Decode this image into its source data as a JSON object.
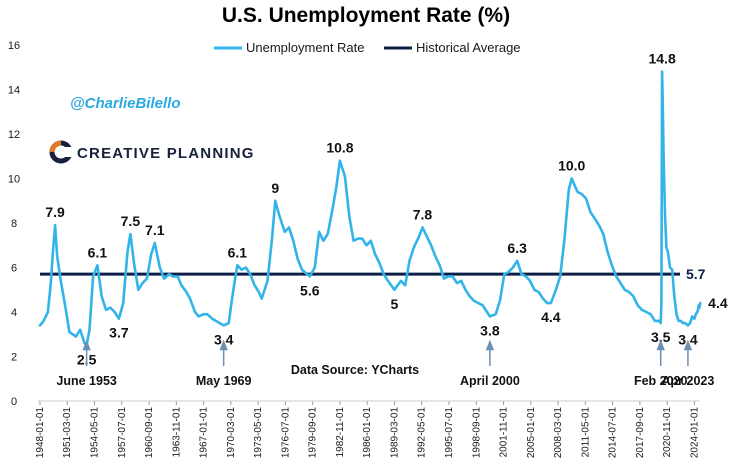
{
  "handle": "@CharlieBilello",
  "brand": {
    "name": "CREATIVE PLANNING",
    "mark": "C",
    "trademark": "®"
  },
  "source": "Data Source: YCharts",
  "colors": {
    "series": "#33b4e8",
    "average": "#0e1f47",
    "arrow": "#6b8fb5",
    "brand_mark": "#e0772a"
  },
  "chart_data": {
    "type": "line",
    "title": "U.S. Unemployment Rate (%)",
    "xlabel": "",
    "ylabel": "",
    "ylim": [
      0,
      16
    ],
    "yticks": [
      "0",
      "2",
      "4",
      "6",
      "8",
      "10",
      "12",
      "14",
      "16"
    ],
    "xlim": [
      "1948-01-01",
      "2024-06-01"
    ],
    "xticks": [
      "1948-01-01",
      "1951-03-01",
      "1954-05-01",
      "1957-07-01",
      "1960-09-01",
      "1963-11-01",
      "1967-01-01",
      "1970-03-01",
      "1973-05-01",
      "1976-07-01",
      "1979-09-01",
      "1982-11-01",
      "1986-01-01",
      "1989-03-01",
      "1992-05-01",
      "1995-07-01",
      "1998-09-01",
      "2001-11-01",
      "2005-01-01",
      "2008-03-01",
      "2011-05-01",
      "2014-07-01",
      "2017-09-01",
      "2020-11-01",
      "2024-01-01"
    ],
    "grid": false,
    "legend": "top-center",
    "series": [
      {
        "name": "Unemployment Rate",
        "points": [
          [
            "1948-01-01",
            3.4
          ],
          [
            "1948-06-01",
            3.6
          ],
          [
            "1948-12-01",
            4.0
          ],
          [
            "1949-04-01",
            5.3
          ],
          [
            "1949-07-01",
            6.7
          ],
          [
            "1949-10-01",
            7.9
          ],
          [
            "1950-01-01",
            6.5
          ],
          [
            "1950-06-01",
            5.4
          ],
          [
            "1950-12-01",
            4.3
          ],
          [
            "1951-06-01",
            3.1
          ],
          [
            "1952-03-01",
            2.9
          ],
          [
            "1952-09-01",
            3.2
          ],
          [
            "1953-03-01",
            2.6
          ],
          [
            "1953-06-01",
            2.5
          ],
          [
            "1953-10-01",
            3.2
          ],
          [
            "1954-03-01",
            5.6
          ],
          [
            "1954-09-01",
            6.1
          ],
          [
            "1955-03-01",
            4.7
          ],
          [
            "1955-09-01",
            4.1
          ],
          [
            "1956-03-01",
            4.2
          ],
          [
            "1956-09-01",
            4.0
          ],
          [
            "1957-03-01",
            3.7
          ],
          [
            "1957-09-01",
            4.4
          ],
          [
            "1958-03-01",
            6.7
          ],
          [
            "1958-07-01",
            7.5
          ],
          [
            "1958-12-01",
            6.2
          ],
          [
            "1959-06-01",
            5.0
          ],
          [
            "1959-12-01",
            5.3
          ],
          [
            "1960-06-01",
            5.5
          ],
          [
            "1960-12-01",
            6.6
          ],
          [
            "1961-05-01",
            7.1
          ],
          [
            "1961-12-01",
            6.0
          ],
          [
            "1962-06-01",
            5.5
          ],
          [
            "1963-01-01",
            5.7
          ],
          [
            "1963-06-01",
            5.6
          ],
          [
            "1964-01-01",
            5.6
          ],
          [
            "1964-06-01",
            5.2
          ],
          [
            "1965-01-01",
            4.9
          ],
          [
            "1965-06-01",
            4.6
          ],
          [
            "1966-01-01",
            4.0
          ],
          [
            "1966-06-01",
            3.8
          ],
          [
            "1967-01-01",
            3.9
          ],
          [
            "1967-06-01",
            3.9
          ],
          [
            "1968-01-01",
            3.7
          ],
          [
            "1968-06-01",
            3.6
          ],
          [
            "1969-05-01",
            3.4
          ],
          [
            "1969-12-01",
            3.5
          ],
          [
            "1970-06-01",
            4.9
          ],
          [
            "1970-12-01",
            6.1
          ],
          [
            "1971-06-01",
            5.9
          ],
          [
            "1971-12-01",
            6.0
          ],
          [
            "1972-06-01",
            5.7
          ],
          [
            "1972-12-01",
            5.2
          ],
          [
            "1973-06-01",
            4.9
          ],
          [
            "1973-10-01",
            4.6
          ],
          [
            "1974-06-01",
            5.4
          ],
          [
            "1974-12-01",
            7.2
          ],
          [
            "1975-05-01",
            9.0
          ],
          [
            "1975-10-01",
            8.4
          ],
          [
            "1976-06-01",
            7.6
          ],
          [
            "1976-12-01",
            7.8
          ],
          [
            "1977-06-01",
            7.2
          ],
          [
            "1977-12-01",
            6.4
          ],
          [
            "1978-06-01",
            5.9
          ],
          [
            "1979-05-01",
            5.6
          ],
          [
            "1979-12-01",
            6.0
          ],
          [
            "1980-06-01",
            7.6
          ],
          [
            "1980-12-01",
            7.2
          ],
          [
            "1981-06-01",
            7.5
          ],
          [
            "1981-12-01",
            8.5
          ],
          [
            "1982-06-01",
            9.6
          ],
          [
            "1982-11-01",
            10.8
          ],
          [
            "1983-06-01",
            10.1
          ],
          [
            "1983-12-01",
            8.3
          ],
          [
            "1984-06-01",
            7.2
          ],
          [
            "1984-12-01",
            7.3
          ],
          [
            "1985-06-01",
            7.3
          ],
          [
            "1985-12-01",
            7.0
          ],
          [
            "1986-06-01",
            7.2
          ],
          [
            "1986-12-01",
            6.6
          ],
          [
            "1987-06-01",
            6.2
          ],
          [
            "1987-12-01",
            5.7
          ],
          [
            "1988-06-01",
            5.4
          ],
          [
            "1989-03-01",
            5.0
          ],
          [
            "1989-12-01",
            5.4
          ],
          [
            "1990-06-01",
            5.2
          ],
          [
            "1990-12-01",
            6.3
          ],
          [
            "1991-06-01",
            6.9
          ],
          [
            "1991-12-01",
            7.3
          ],
          [
            "1992-06-01",
            7.8
          ],
          [
            "1992-12-01",
            7.4
          ],
          [
            "1993-06-01",
            7.0
          ],
          [
            "1993-12-01",
            6.5
          ],
          [
            "1994-06-01",
            6.1
          ],
          [
            "1994-12-01",
            5.5
          ],
          [
            "1995-06-01",
            5.6
          ],
          [
            "1995-12-01",
            5.6
          ],
          [
            "1996-06-01",
            5.3
          ],
          [
            "1996-12-01",
            5.4
          ],
          [
            "1997-06-01",
            5.0
          ],
          [
            "1997-12-01",
            4.7
          ],
          [
            "1998-06-01",
            4.5
          ],
          [
            "1998-12-01",
            4.4
          ],
          [
            "1999-06-01",
            4.3
          ],
          [
            "1999-12-01",
            4.0
          ],
          [
            "2000-04-01",
            3.8
          ],
          [
            "2000-12-01",
            3.9
          ],
          [
            "2001-06-01",
            4.5
          ],
          [
            "2001-12-01",
            5.7
          ],
          [
            "2002-06-01",
            5.8
          ],
          [
            "2002-12-01",
            6.0
          ],
          [
            "2003-06-01",
            6.3
          ],
          [
            "2003-12-01",
            5.7
          ],
          [
            "2004-06-01",
            5.6
          ],
          [
            "2004-12-01",
            5.4
          ],
          [
            "2005-06-01",
            5.0
          ],
          [
            "2005-12-01",
            4.9
          ],
          [
            "2006-06-01",
            4.6
          ],
          [
            "2006-12-01",
            4.4
          ],
          [
            "2007-05-01",
            4.4
          ],
          [
            "2007-12-01",
            5.0
          ],
          [
            "2008-06-01",
            5.6
          ],
          [
            "2008-12-01",
            7.3
          ],
          [
            "2009-06-01",
            9.5
          ],
          [
            "2009-10-01",
            10.0
          ],
          [
            "2010-06-01",
            9.4
          ],
          [
            "2010-12-01",
            9.3
          ],
          [
            "2011-06-01",
            9.1
          ],
          [
            "2011-12-01",
            8.5
          ],
          [
            "2012-06-01",
            8.2
          ],
          [
            "2012-12-01",
            7.9
          ],
          [
            "2013-06-01",
            7.5
          ],
          [
            "2013-12-01",
            6.7
          ],
          [
            "2014-06-01",
            6.1
          ],
          [
            "2014-12-01",
            5.6
          ],
          [
            "2015-06-01",
            5.3
          ],
          [
            "2015-12-01",
            5.0
          ],
          [
            "2016-06-01",
            4.9
          ],
          [
            "2016-12-01",
            4.7
          ],
          [
            "2017-06-01",
            4.3
          ],
          [
            "2017-12-01",
            4.1
          ],
          [
            "2018-06-01",
            4.0
          ],
          [
            "2018-12-01",
            3.9
          ],
          [
            "2019-06-01",
            3.6
          ],
          [
            "2019-12-01",
            3.6
          ],
          [
            "2020-02-01",
            3.5
          ],
          [
            "2020-03-01",
            4.4
          ],
          [
            "2020-04-01",
            14.8
          ],
          [
            "2020-05-01",
            13.2
          ],
          [
            "2020-06-01",
            11.0
          ],
          [
            "2020-08-01",
            8.4
          ],
          [
            "2020-10-01",
            6.9
          ],
          [
            "2020-12-01",
            6.7
          ],
          [
            "2021-03-01",
            6.0
          ],
          [
            "2021-06-01",
            5.9
          ],
          [
            "2021-09-01",
            4.7
          ],
          [
            "2021-12-01",
            3.9
          ],
          [
            "2022-03-01",
            3.6
          ],
          [
            "2022-06-01",
            3.6
          ],
          [
            "2022-09-01",
            3.5
          ],
          [
            "2022-12-01",
            3.5
          ],
          [
            "2023-04-01",
            3.4
          ],
          [
            "2023-07-01",
            3.5
          ],
          [
            "2023-10-01",
            3.8
          ],
          [
            "2024-01-01",
            3.7
          ],
          [
            "2024-03-01",
            3.9
          ],
          [
            "2024-05-01",
            4.0
          ],
          [
            "2024-06-01",
            4.1
          ],
          [
            "2024-07-01",
            4.3
          ],
          [
            "2024-08-01",
            4.2
          ],
          [
            "2024-09-01",
            4.4
          ]
        ]
      },
      {
        "name": "Historical Average",
        "value": 5.7
      }
    ],
    "average_label": "5.7",
    "annotations": [
      {
        "text": "7.9",
        "x": "1949-10-01",
        "y": 7.9,
        "pos": "above",
        "size": "bold"
      },
      {
        "text": "2.5",
        "x": "1953-06-01",
        "y": 2.5,
        "pos": "below",
        "size": "bold"
      },
      {
        "text": "6.1",
        "x": "1954-09-01",
        "y": 6.1,
        "pos": "above",
        "size": "bold"
      },
      {
        "text": "3.7",
        "x": "1957-03-01",
        "y": 3.7,
        "pos": "below",
        "size": "bold"
      },
      {
        "text": "7.5",
        "x": "1958-07-01",
        "y": 7.5,
        "pos": "above",
        "size": "bold"
      },
      {
        "text": "7.1",
        "x": "1961-05-01",
        "y": 7.1,
        "pos": "above",
        "size": "bold"
      },
      {
        "text": "3.4",
        "x": "1969-05-01",
        "y": 3.4,
        "pos": "below",
        "size": "bold"
      },
      {
        "text": "6.1",
        "x": "1970-12-01",
        "y": 6.1,
        "pos": "above",
        "size": "bold"
      },
      {
        "text": "9",
        "x": "1975-05-01",
        "y": 9.0,
        "pos": "above",
        "size": "bold"
      },
      {
        "text": "5.6",
        "x": "1979-05-01",
        "y": 5.6,
        "pos": "below",
        "size": "bold"
      },
      {
        "text": "10.8",
        "x": "1982-11-01",
        "y": 10.8,
        "pos": "above",
        "size": "bold"
      },
      {
        "text": "5",
        "x": "1989-03-01",
        "y": 5.0,
        "pos": "below",
        "size": "bold"
      },
      {
        "text": "7.8",
        "x": "1992-06-01",
        "y": 7.8,
        "pos": "above",
        "size": "bold"
      },
      {
        "text": "3.8",
        "x": "2000-04-01",
        "y": 3.8,
        "pos": "below",
        "size": "bold"
      },
      {
        "text": "6.3",
        "x": "2003-06-01",
        "y": 6.3,
        "pos": "above",
        "size": "bold"
      },
      {
        "text": "4.4",
        "x": "2007-05-01",
        "y": 4.4,
        "pos": "below",
        "size": "bold"
      },
      {
        "text": "10.0",
        "x": "2009-10-01",
        "y": 10.0,
        "pos": "above",
        "size": "bold"
      },
      {
        "text": "3.5",
        "x": "2020-02-01",
        "y": 3.5,
        "pos": "below",
        "size": "bold"
      },
      {
        "text": "14.8",
        "x": "2020-04-01",
        "y": 14.8,
        "pos": "above",
        "size": "bold"
      },
      {
        "text": "3.4",
        "x": "2023-04-01",
        "y": 3.4,
        "pos": "below",
        "size": "bold"
      },
      {
        "text": "4.4",
        "x": "2024-09-01",
        "y": 4.4,
        "pos": "right",
        "size": "bold"
      }
    ],
    "callouts": [
      {
        "text": "June 1953",
        "x": "1953-06-01"
      },
      {
        "text": "May 1969",
        "x": "1969-05-01"
      },
      {
        "text": "April 2000",
        "x": "2000-04-01"
      },
      {
        "text": "Feb 2020",
        "x": "2020-02-01"
      },
      {
        "text": "Apr 2023",
        "x": "2023-04-01"
      }
    ]
  }
}
